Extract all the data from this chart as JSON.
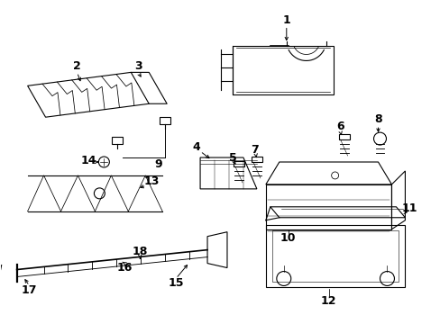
{
  "background_color": "#ffffff",
  "line_color": "#000000",
  "lw": 0.8
}
